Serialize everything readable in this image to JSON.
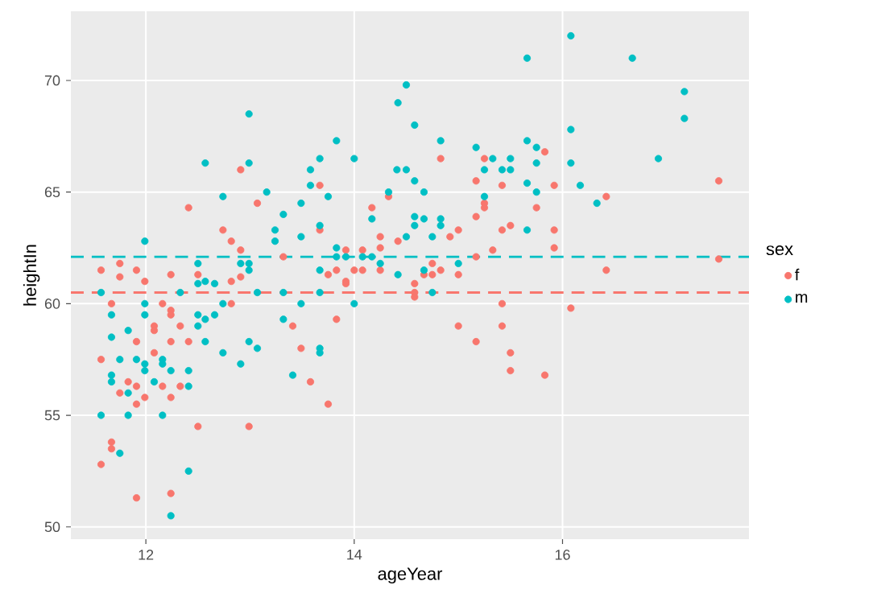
{
  "chart_data": {
    "type": "scatter",
    "xlabel": "ageYear",
    "ylabel": "heightIn",
    "legend_title": "sex",
    "xlim": [
      11.28,
      17.79
    ],
    "ylim": [
      49.45,
      73.1
    ],
    "xticks": [
      12,
      14,
      16
    ],
    "yticks": [
      50,
      55,
      60,
      65,
      70
    ],
    "grid": true,
    "legend": "right",
    "marker": "circle",
    "ref_lines": [
      {
        "axis": "y",
        "value": 62.1,
        "color": "#00bfc4",
        "line_style": "dashed"
      },
      {
        "axis": "y",
        "value": 60.5,
        "color": "#f8766d",
        "line_style": "dashed"
      }
    ],
    "series": [
      {
        "name": "f",
        "color": "#f8766d",
        "x": [
          12.91,
          12.41,
          13.07,
          12.74,
          12.82,
          12.91,
          13.32,
          11.57,
          11.75,
          11.75,
          11.91,
          12.24,
          12.5,
          12.91,
          11.99,
          12.82,
          13.67,
          14.83,
          15.25,
          14.33,
          15.17,
          15.42,
          15.25,
          15.25,
          14.17,
          15.17,
          15.42,
          15.5,
          13.67,
          14.25,
          14.92,
          15.0,
          14.42,
          14.25,
          13.92,
          14.08,
          15.33,
          15.17,
          14.75,
          13.83,
          14.0,
          14.08,
          14.25,
          14.83,
          13.75,
          14.67,
          14.75,
          15.0,
          13.92,
          14.58,
          15.83,
          15.92,
          17.5,
          16.42,
          15.75,
          15.92,
          15.92,
          17.5,
          16.42,
          11.67,
          11.57,
          11.83,
          11.75,
          11.67,
          11.67,
          11.57,
          11.91,
          11.91,
          11.91,
          11.91,
          11.99,
          12.08,
          12.08,
          12.08,
          12.16,
          12.16,
          12.24,
          12.24,
          12.24,
          12.24,
          12.24,
          12.33,
          12.33,
          12.41,
          12.5,
          12.82,
          12.99,
          13.41,
          13.49,
          13.83,
          13.58,
          13.75,
          13.92,
          14.58,
          14.58,
          15.0,
          15.17,
          15.42,
          15.42,
          15.5,
          15.5,
          16.08,
          15.83
        ],
        "values": [
          66.0,
          64.3,
          64.5,
          63.3,
          62.8,
          62.4,
          62.1,
          61.5,
          61.8,
          61.2,
          61.5,
          61.3,
          61.3,
          61.2,
          61.0,
          61.0,
          65.3,
          66.5,
          66.5,
          64.8,
          65.5,
          65.3,
          64.5,
          64.3,
          64.3,
          63.9,
          63.3,
          63.5,
          63.3,
          63.0,
          63.0,
          63.3,
          62.8,
          62.5,
          62.4,
          62.4,
          62.4,
          62.1,
          61.8,
          61.5,
          61.5,
          61.5,
          61.5,
          61.5,
          61.3,
          61.3,
          61.3,
          61.3,
          61.0,
          60.9,
          66.8,
          65.3,
          65.5,
          64.8,
          64.3,
          63.3,
          62.5,
          62.0,
          61.5,
          60.0,
          57.5,
          56.5,
          56.0,
          53.8,
          53.5,
          52.8,
          51.3,
          58.3,
          56.3,
          55.5,
          55.8,
          59.0,
          58.8,
          57.8,
          60.0,
          56.3,
          59.7,
          59.5,
          58.3,
          55.8,
          51.5,
          59.0,
          56.3,
          58.3,
          54.5,
          60.0,
          54.5,
          59.0,
          58.0,
          59.3,
          56.5,
          55.5,
          60.9,
          60.5,
          60.3,
          59.0,
          58.3,
          60.0,
          59.0,
          57.8,
          57.0,
          59.8,
          56.8
        ]
      },
      {
        "name": "m",
        "color": "#00bfc4",
        "x": [
          12.99,
          12.57,
          12.99,
          13.16,
          12.74,
          13.49,
          13.32,
          13.24,
          13.24,
          11.99,
          13.49,
          12.5,
          12.91,
          12.99,
          12.99,
          12.57,
          12.66,
          12.5,
          15.66,
          14.5,
          14.42,
          14.58,
          13.83,
          14.83,
          15.17,
          15.66,
          13.67,
          14.0,
          15.33,
          15.5,
          13.58,
          14.41,
          14.5,
          15.25,
          15.42,
          15.5,
          15.66,
          13.58,
          14.58,
          14.67,
          14.33,
          13.75,
          15.25,
          14.17,
          14.58,
          14.67,
          14.83,
          14.83,
          14.58,
          15.66,
          13.67,
          14.5,
          14.75,
          13.83,
          13.83,
          13.92,
          14.08,
          14.17,
          14.25,
          15.0,
          13.67,
          14.67,
          14.42,
          16.08,
          16.67,
          17.17,
          17.17,
          16.08,
          15.75,
          15.75,
          16.08,
          16.92,
          16.17,
          15.75,
          16.33,
          11.57,
          11.67,
          11.67,
          11.75,
          11.67,
          11.67,
          11.83,
          11.57,
          11.83,
          11.75,
          11.83,
          11.91,
          11.99,
          11.99,
          11.99,
          11.99,
          12.08,
          12.16,
          12.16,
          12.16,
          12.24,
          12.24,
          12.33,
          12.41,
          12.41,
          12.41,
          12.5,
          12.5,
          12.57,
          12.57,
          12.66,
          12.74,
          12.74,
          12.91,
          12.99,
          13.07,
          13.32,
          13.41,
          13.07,
          13.32,
          13.49,
          13.67,
          14.0,
          13.67,
          13.67,
          14.75
        ],
        "values": [
          68.5,
          66.3,
          66.3,
          65.0,
          64.8,
          64.5,
          64.0,
          63.3,
          62.8,
          62.8,
          63.0,
          61.8,
          61.8,
          61.8,
          61.5,
          61.0,
          60.9,
          60.9,
          71.0,
          69.8,
          69.0,
          68.0,
          67.3,
          67.3,
          67.0,
          67.3,
          66.5,
          66.5,
          66.5,
          66.5,
          66.0,
          66.0,
          66.0,
          66.0,
          66.0,
          66.0,
          65.4,
          65.3,
          65.5,
          65.0,
          65.0,
          64.8,
          64.8,
          63.8,
          63.9,
          63.8,
          63.8,
          63.5,
          63.5,
          63.3,
          63.5,
          63.0,
          63.0,
          62.5,
          62.1,
          62.1,
          62.1,
          62.1,
          61.8,
          61.8,
          61.5,
          61.5,
          61.3,
          72.0,
          71.0,
          69.5,
          68.3,
          67.8,
          67.0,
          66.3,
          66.3,
          66.5,
          65.3,
          65.0,
          64.5,
          60.5,
          59.5,
          58.5,
          57.5,
          56.8,
          56.5,
          56.0,
          55.0,
          55.0,
          53.3,
          58.8,
          57.5,
          60.0,
          59.5,
          57.3,
          57.0,
          56.5,
          57.5,
          57.3,
          55.0,
          57.0,
          50.5,
          60.5,
          57.0,
          56.3,
          52.5,
          59.5,
          59.0,
          59.3,
          58.3,
          59.5,
          60.0,
          57.8,
          57.3,
          58.3,
          58.0,
          59.3,
          56.8,
          60.5,
          60.5,
          60.0,
          60.5,
          60.0,
          58.0,
          57.8,
          60.5
        ]
      }
    ]
  }
}
